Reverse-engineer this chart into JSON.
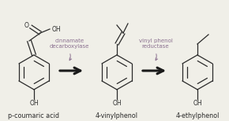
{
  "bg_color": "#f0efe8",
  "arrow_color": "#1a1a1a",
  "enzyme1_color": "#8b7090",
  "enzyme2_color": "#8b7090",
  "enzyme1_text": "cinnamate\ndecarboxylase",
  "enzyme2_text": "vinyl phenol\nreductase",
  "label1": "p-coumaric acid",
  "label2": "4-vinylphenol",
  "label3": "4-ethylphenol",
  "label_fontsize": 5.8,
  "enzyme_fontsize": 5.0,
  "ring_color": "#2a2a2a",
  "line_width": 0.9,
  "figsize": [
    2.9,
    1.54
  ],
  "dpi": 100
}
